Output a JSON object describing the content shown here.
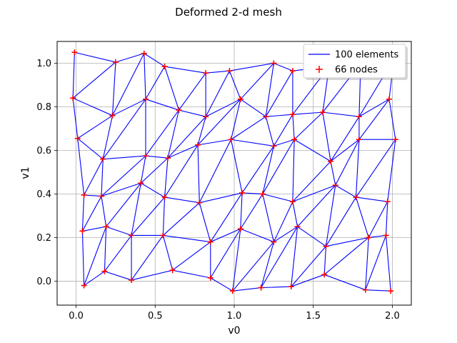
{
  "chart_data": {
    "type": "scatter",
    "title": "Deformed 2-d mesh",
    "xlabel": "v0",
    "ylabel": "v1",
    "xlim": [
      -0.12,
      2.12
    ],
    "ylim": [
      -0.11,
      1.1
    ],
    "xticks": [
      0.0,
      0.5,
      1.0,
      1.5,
      2.0
    ],
    "xtick_labels": [
      "0.0",
      "0.5",
      "1.0",
      "1.5",
      "2.0"
    ],
    "yticks": [
      0.0,
      0.2,
      0.4,
      0.6,
      0.8,
      1.0
    ],
    "ytick_labels": [
      "0.0",
      "0.2",
      "0.4",
      "0.6",
      "0.8",
      "1.0"
    ],
    "grid": true,
    "legend_position": "upper right",
    "series": [
      {
        "name": "100 elements",
        "kind": "line",
        "color": "#0000ff"
      },
      {
        "name": "66 nodes",
        "kind": "marker",
        "marker": "+",
        "color": "#ff0000"
      }
    ],
    "nodes": [
      [
        0.05,
        -0.02
      ],
      [
        0.18,
        0.045
      ],
      [
        0.35,
        0.005
      ],
      [
        0.61,
        0.05
      ],
      [
        0.85,
        0.015
      ],
      [
        0.99,
        -0.045
      ],
      [
        1.17,
        -0.03
      ],
      [
        1.36,
        -0.025
      ],
      [
        1.57,
        0.03
      ],
      [
        1.83,
        -0.04
      ],
      [
        1.99,
        -0.045
      ],
      [
        0.04,
        0.23
      ],
      [
        0.19,
        0.25
      ],
      [
        0.35,
        0.21
      ],
      [
        0.55,
        0.21
      ],
      [
        0.85,
        0.18
      ],
      [
        1.04,
        0.24
      ],
      [
        1.25,
        0.18
      ],
      [
        1.4,
        0.25
      ],
      [
        1.58,
        0.16
      ],
      [
        1.85,
        0.2
      ],
      [
        1.96,
        0.21
      ],
      [
        0.05,
        0.395
      ],
      [
        0.16,
        0.39
      ],
      [
        0.41,
        0.45
      ],
      [
        0.56,
        0.385
      ],
      [
        0.78,
        0.36
      ],
      [
        1.05,
        0.405
      ],
      [
        1.18,
        0.4
      ],
      [
        1.37,
        0.365
      ],
      [
        1.64,
        0.44
      ],
      [
        1.77,
        0.385
      ],
      [
        1.97,
        0.365
      ],
      [
        0.01,
        0.655
      ],
      [
        0.17,
        0.56
      ],
      [
        0.44,
        0.575
      ],
      [
        0.58,
        0.565
      ],
      [
        0.77,
        0.625
      ],
      [
        0.98,
        0.65
      ],
      [
        1.25,
        0.62
      ],
      [
        1.38,
        0.65
      ],
      [
        1.61,
        0.55
      ],
      [
        1.79,
        0.65
      ],
      [
        2.02,
        0.65
      ],
      [
        -0.02,
        0.84
      ],
      [
        0.23,
        0.76
      ],
      [
        0.44,
        0.835
      ],
      [
        0.65,
        0.785
      ],
      [
        0.82,
        0.755
      ],
      [
        1.04,
        0.835
      ],
      [
        1.2,
        0.755
      ],
      [
        1.37,
        0.765
      ],
      [
        1.56,
        0.775
      ],
      [
        1.79,
        0.755
      ],
      [
        1.98,
        0.835
      ],
      [
        -0.01,
        1.05
      ],
      [
        0.25,
        1.005
      ],
      [
        0.43,
        1.045
      ],
      [
        0.56,
        0.985
      ],
      [
        0.82,
        0.955
      ],
      [
        0.97,
        0.965
      ],
      [
        1.25,
        1.0
      ],
      [
        1.37,
        0.965
      ],
      [
        1.6,
        0.985
      ],
      [
        1.8,
        1.0
      ],
      [
        2.01,
        1.02
      ]
    ],
    "edges": [
      [
        0,
        1
      ],
      [
        1,
        2
      ],
      [
        2,
        3
      ],
      [
        3,
        4
      ],
      [
        4,
        5
      ],
      [
        5,
        6
      ],
      [
        6,
        7
      ],
      [
        7,
        8
      ],
      [
        8,
        9
      ],
      [
        9,
        10
      ],
      [
        11,
        12
      ],
      [
        12,
        13
      ],
      [
        13,
        14
      ],
      [
        14,
        15
      ],
      [
        15,
        16
      ],
      [
        16,
        17
      ],
      [
        17,
        18
      ],
      [
        18,
        19
      ],
      [
        19,
        20
      ],
      [
        20,
        21
      ],
      [
        22,
        23
      ],
      [
        23,
        24
      ],
      [
        24,
        25
      ],
      [
        25,
        26
      ],
      [
        26,
        27
      ],
      [
        27,
        28
      ],
      [
        28,
        29
      ],
      [
        29,
        30
      ],
      [
        30,
        31
      ],
      [
        31,
        32
      ],
      [
        33,
        34
      ],
      [
        34,
        35
      ],
      [
        35,
        36
      ],
      [
        36,
        37
      ],
      [
        37,
        38
      ],
      [
        38,
        39
      ],
      [
        39,
        40
      ],
      [
        40,
        41
      ],
      [
        41,
        42
      ],
      [
        42,
        43
      ],
      [
        44,
        45
      ],
      [
        45,
        46
      ],
      [
        46,
        47
      ],
      [
        47,
        48
      ],
      [
        48,
        49
      ],
      [
        49,
        50
      ],
      [
        50,
        51
      ],
      [
        51,
        52
      ],
      [
        52,
        53
      ],
      [
        53,
        54
      ],
      [
        55,
        56
      ],
      [
        56,
        57
      ],
      [
        57,
        58
      ],
      [
        58,
        59
      ],
      [
        59,
        60
      ],
      [
        60,
        61
      ],
      [
        61,
        62
      ],
      [
        62,
        63
      ],
      [
        63,
        64
      ],
      [
        64,
        65
      ],
      [
        0,
        11
      ],
      [
        1,
        12
      ],
      [
        2,
        13
      ],
      [
        3,
        14
      ],
      [
        4,
        15
      ],
      [
        5,
        16
      ],
      [
        6,
        17
      ],
      [
        7,
        18
      ],
      [
        8,
        19
      ],
      [
        9,
        20
      ],
      [
        10,
        21
      ],
      [
        11,
        22
      ],
      [
        12,
        23
      ],
      [
        13,
        24
      ],
      [
        14,
        25
      ],
      [
        15,
        26
      ],
      [
        16,
        27
      ],
      [
        17,
        28
      ],
      [
        18,
        29
      ],
      [
        19,
        30
      ],
      [
        20,
        31
      ],
      [
        21,
        32
      ],
      [
        22,
        33
      ],
      [
        23,
        34
      ],
      [
        24,
        35
      ],
      [
        25,
        36
      ],
      [
        26,
        37
      ],
      [
        27,
        38
      ],
      [
        28,
        39
      ],
      [
        29,
        40
      ],
      [
        30,
        41
      ],
      [
        31,
        42
      ],
      [
        32,
        43
      ],
      [
        33,
        44
      ],
      [
        34,
        45
      ],
      [
        35,
        46
      ],
      [
        36,
        47
      ],
      [
        37,
        48
      ],
      [
        38,
        49
      ],
      [
        39,
        50
      ],
      [
        40,
        51
      ],
      [
        41,
        52
      ],
      [
        42,
        53
      ],
      [
        43,
        54
      ],
      [
        44,
        55
      ],
      [
        45,
        56
      ],
      [
        46,
        57
      ],
      [
        47,
        58
      ],
      [
        48,
        59
      ],
      [
        49,
        60
      ],
      [
        50,
        61
      ],
      [
        51,
        62
      ],
      [
        52,
        63
      ],
      [
        53,
        64
      ],
      [
        54,
        65
      ],
      [
        0,
        12
      ],
      [
        2,
        14
      ],
      [
        4,
        16
      ],
      [
        6,
        18
      ],
      [
        8,
        20
      ],
      [
        1,
        13
      ],
      [
        3,
        15
      ],
      [
        5,
        17
      ],
      [
        7,
        19
      ],
      [
        9,
        21
      ],
      [
        11,
        23
      ],
      [
        13,
        25
      ],
      [
        15,
        27
      ],
      [
        17,
        29
      ],
      [
        19,
        31
      ],
      [
        12,
        24
      ],
      [
        14,
        26
      ],
      [
        16,
        28
      ],
      [
        18,
        30
      ],
      [
        20,
        32
      ],
      [
        22,
        34
      ],
      [
        24,
        36
      ],
      [
        26,
        38
      ],
      [
        28,
        40
      ],
      [
        30,
        42
      ],
      [
        23,
        35
      ],
      [
        25,
        37
      ],
      [
        27,
        39
      ],
      [
        29,
        41
      ],
      [
        31,
        43
      ],
      [
        33,
        45
      ],
      [
        35,
        47
      ],
      [
        37,
        49
      ],
      [
        39,
        51
      ],
      [
        41,
        53
      ],
      [
        34,
        46
      ],
      [
        36,
        48
      ],
      [
        38,
        50
      ],
      [
        40,
        52
      ],
      [
        42,
        54
      ],
      [
        44,
        56
      ],
      [
        46,
        58
      ],
      [
        48,
        60
      ],
      [
        50,
        62
      ],
      [
        52,
        64
      ],
      [
        45,
        57
      ],
      [
        47,
        59
      ],
      [
        49,
        61
      ],
      [
        51,
        63
      ],
      [
        53,
        65
      ]
    ]
  }
}
